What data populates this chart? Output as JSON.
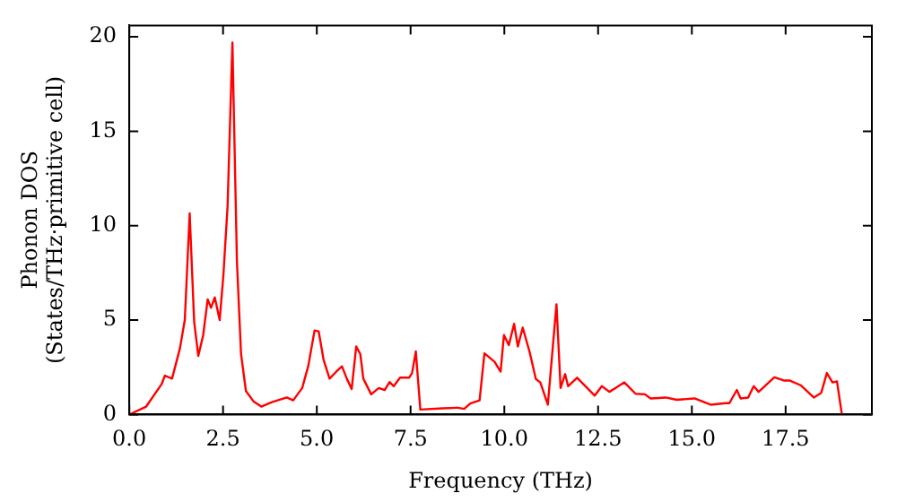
{
  "chart_data": {
    "type": "line",
    "xlabel": "Frequency (THz)",
    "ylabel": "Phonon DOS\n(States/THz·primitive cell)",
    "xlim": [
      0,
      19.8
    ],
    "ylim": [
      0,
      20.6
    ],
    "xticks": [
      {
        "value": 0,
        "label": "0.0"
      },
      {
        "value": 2.5,
        "label": "2.5"
      },
      {
        "value": 5,
        "label": "5.0"
      },
      {
        "value": 7.5,
        "label": "7.5"
      },
      {
        "value": 10,
        "label": "10.0"
      },
      {
        "value": 12.5,
        "label": "12.5"
      },
      {
        "value": 15,
        "label": "15.0"
      },
      {
        "value": 17.5,
        "label": "17.5"
      }
    ],
    "yticks": [
      0,
      5,
      10,
      15,
      20
    ],
    "grid": false,
    "legend": false,
    "marker": "none",
    "line_style": "solid",
    "series": [
      {
        "color": "#ff0000",
        "x": [
          0,
          0.45,
          0.86,
          0.95,
          1.14,
          1.35,
          1.48,
          1.61,
          1.73,
          1.84,
          1.97,
          2.09,
          2.18,
          2.28,
          2.41,
          2.51,
          2.62,
          2.75,
          2.87,
          2.98,
          3.11,
          3.31,
          3.52,
          3.8,
          4.2,
          4.37,
          4.61,
          4.77,
          4.94,
          5.05,
          5.18,
          5.34,
          5.51,
          5.67,
          5.8,
          5.93,
          6.05,
          6.16,
          6.24,
          6.45,
          6.65,
          6.81,
          6.94,
          7.05,
          7.22,
          7.46,
          7.54,
          7.64,
          7.76,
          8.36,
          8.76,
          8.93,
          9.09,
          9.34,
          9.47,
          9.74,
          9.9,
          9.99,
          10.12,
          10.26,
          10.36,
          10.49,
          10.67,
          10.84,
          10.96,
          11.16,
          11.39,
          11.5,
          11.62,
          11.7,
          11.94,
          12.11,
          12.41,
          12.6,
          12.8,
          12.96,
          13.2,
          13.5,
          13.75,
          13.9,
          14.3,
          14.6,
          15.07,
          15.5,
          15.9,
          16.0,
          16.2,
          16.3,
          16.5,
          16.65,
          16.78,
          17.2,
          17.45,
          17.6,
          17.9,
          18.25,
          18.45,
          18.6,
          18.75,
          18.87,
          19.0
        ],
        "values": [
          0,
          0.42,
          1.6,
          2.06,
          1.9,
          3.5,
          5.0,
          10.65,
          4.9,
          3.1,
          4.2,
          6.1,
          5.65,
          6.2,
          5.0,
          7.4,
          11.0,
          19.7,
          8.1,
          3.2,
          1.24,
          0.7,
          0.42,
          0.65,
          0.9,
          0.75,
          1.4,
          2.55,
          4.45,
          4.4,
          2.9,
          1.9,
          2.25,
          2.55,
          1.9,
          1.35,
          3.6,
          3.2,
          1.9,
          1.07,
          1.4,
          1.3,
          1.72,
          1.5,
          1.95,
          1.95,
          2.2,
          3.34,
          0.26,
          0.33,
          0.36,
          0.3,
          0.58,
          0.75,
          3.24,
          2.79,
          2.27,
          4.21,
          3.67,
          4.8,
          3.6,
          4.6,
          3.34,
          1.88,
          1.7,
          0.52,
          5.84,
          1.4,
          2.14,
          1.5,
          1.95,
          1.6,
          1.0,
          1.5,
          1.2,
          1.4,
          1.7,
          1.1,
          1.07,
          0.85,
          0.9,
          0.78,
          0.85,
          0.52,
          0.6,
          0.6,
          1.3,
          0.85,
          0.9,
          1.5,
          1.2,
          1.97,
          1.8,
          1.8,
          1.55,
          0.9,
          1.15,
          2.2,
          1.7,
          1.75,
          0
        ]
      }
    ]
  }
}
